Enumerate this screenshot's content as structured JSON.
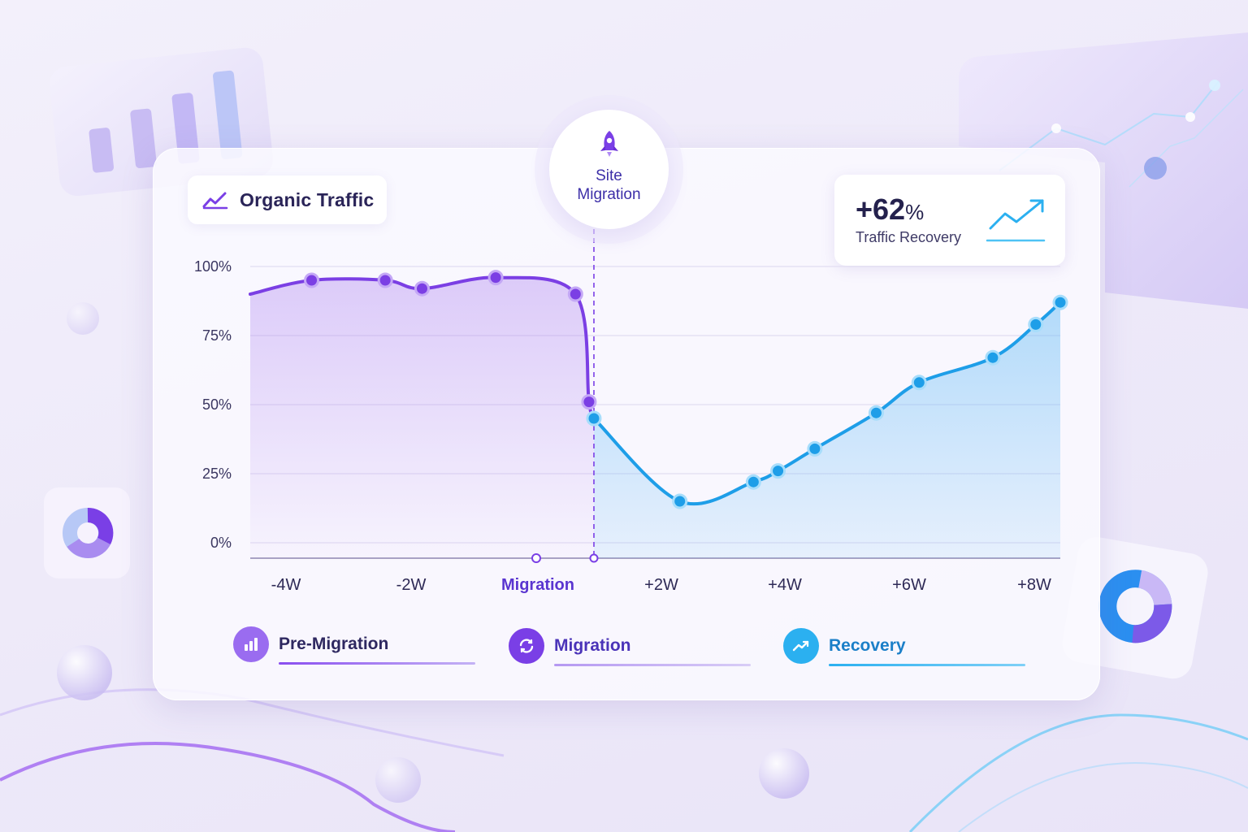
{
  "chart_data": {
    "type": "area",
    "title": "Organic Traffic",
    "annotation": "Site Migration",
    "ylim": [
      0,
      100
    ],
    "yticks": [
      "100%",
      "75%",
      "50%",
      "25%",
      "0%"
    ],
    "xticks": [
      "-4W",
      "-2W",
      "Migration",
      "+2W",
      "+4W",
      "+6W",
      "+8W"
    ],
    "xlim": [
      -5,
      8.2
    ],
    "migration_x": 0.6,
    "grid": true,
    "series": [
      {
        "name": "Pre-Migration",
        "color": "#7b3fe4",
        "x": [
          -5.0,
          -4.0,
          -2.8,
          -2.2,
          -1.0,
          0.3,
          0.52,
          0.6
        ],
        "y": [
          90,
          95,
          95,
          92,
          96,
          90,
          51,
          45
        ],
        "markers": [
          -4.0,
          -2.8,
          -2.2,
          -1.0,
          0.3,
          0.52
        ]
      },
      {
        "name": "Recovery",
        "color": "#1e9ee8",
        "x": [
          0.6,
          2.0,
          3.2,
          3.6,
          4.2,
          5.2,
          5.9,
          7.1,
          7.8,
          8.2
        ],
        "y": [
          45,
          15,
          22,
          26,
          34,
          47,
          58,
          67,
          79,
          87
        ],
        "markers": [
          0.6,
          2.0,
          3.2,
          3.6,
          4.2,
          5.2,
          5.9,
          7.1,
          7.8,
          8.2
        ]
      }
    ]
  },
  "header": {
    "title": "Organic Traffic"
  },
  "badge": {
    "line1": "Site",
    "line2": "Migration"
  },
  "stat": {
    "value": "+62",
    "unit": "%",
    "label": "Traffic Recovery"
  },
  "legend": [
    {
      "label": "Pre-Migration",
      "icon": "bar-chart-icon",
      "color": "#9a6cf0"
    },
    {
      "label": "Migration",
      "icon": "refresh-icon",
      "color": "#7a3fe6"
    },
    {
      "label": "Recovery",
      "icon": "trend-up-icon",
      "color": "#2bb0f0"
    }
  ]
}
